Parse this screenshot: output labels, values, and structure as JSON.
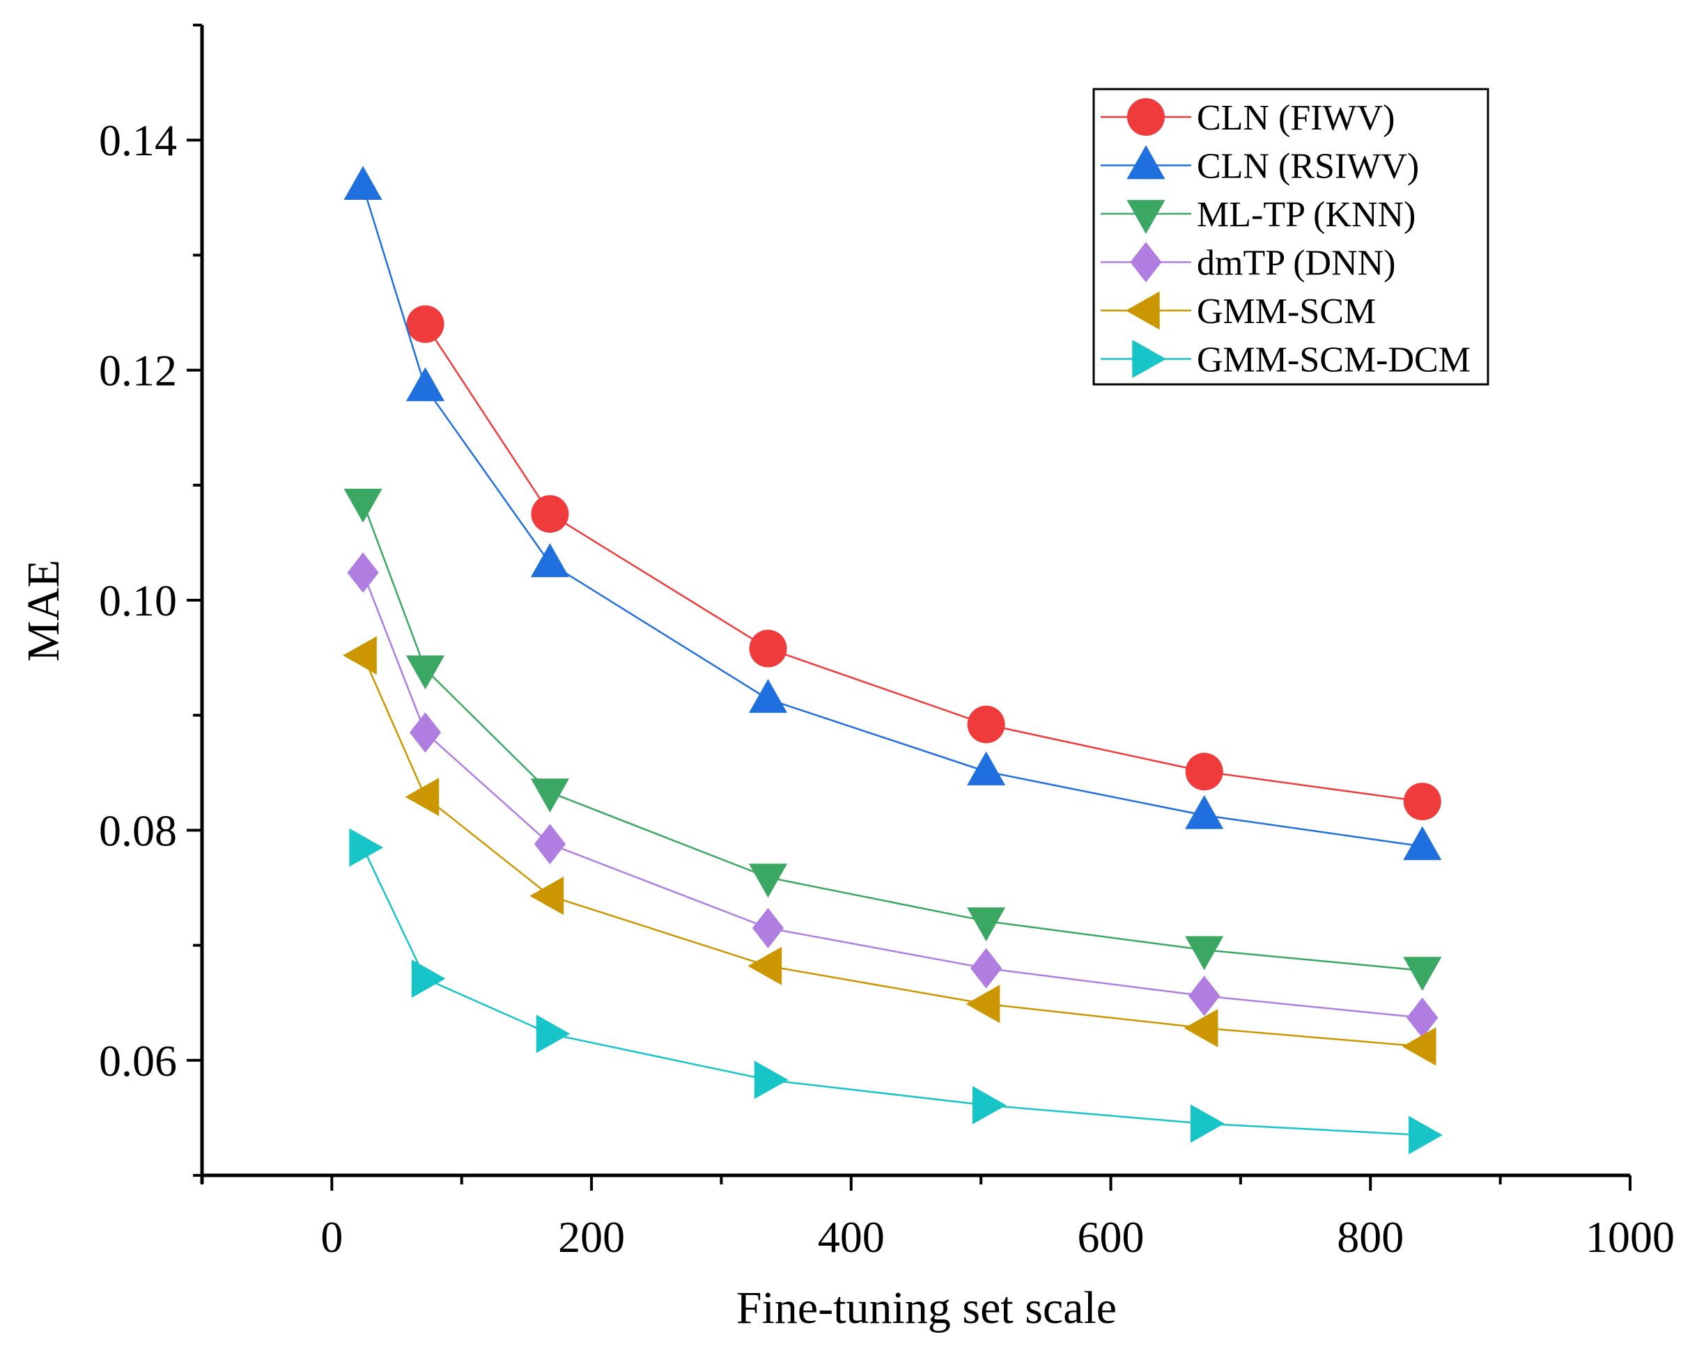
{
  "chart_data": {
    "type": "line",
    "title": "",
    "xlabel": "Fine-tuning set scale",
    "ylabel": "MAE",
    "xlim": [
      -100,
      1000
    ],
    "ylim": [
      0.05,
      0.15
    ],
    "xticks": [
      0,
      200,
      400,
      600,
      800,
      1000
    ],
    "xtick_labels": [
      "0",
      "200",
      "400",
      "600",
      "800",
      "1000"
    ],
    "yticks": [
      0.06,
      0.08,
      0.1,
      0.12,
      0.14
    ],
    "ytick_labels": [
      "0.06",
      "0.08",
      "0.10",
      "0.12",
      "0.14"
    ],
    "legend_position": "top-right",
    "series": [
      {
        "name": "CLN (FIWV)",
        "color": "#ef3b3b",
        "marker": "circle",
        "x": [
          72,
          168,
          336,
          504,
          672,
          840
        ],
        "values": [
          0.124,
          0.1075,
          0.0958,
          0.0892,
          0.0851,
          0.0825
        ]
      },
      {
        "name": "CLN (RSIWV)",
        "color": "#1f6fde",
        "marker": "triangle-up",
        "x": [
          24,
          72,
          168,
          336,
          504,
          672,
          840
        ],
        "values": [
          0.136,
          0.1185,
          0.1032,
          0.0914,
          0.0851,
          0.0813,
          0.0786
        ]
      },
      {
        "name": "ML-TP (KNN)",
        "color": "#3aa862",
        "marker": "triangle-down",
        "x": [
          24,
          72,
          168,
          336,
          504,
          672,
          840
        ],
        "values": [
          0.1085,
          0.094,
          0.0833,
          0.0759,
          0.0721,
          0.0696,
          0.0678
        ]
      },
      {
        "name": "dmTP (DNN)",
        "color": "#b07ee0",
        "marker": "diamond",
        "x": [
          24,
          72,
          168,
          336,
          504,
          672,
          840
        ],
        "values": [
          0.1024,
          0.0885,
          0.0788,
          0.0715,
          0.068,
          0.0656,
          0.0637
        ]
      },
      {
        "name": "GMM-SCM",
        "color": "#cc9600",
        "marker": "triangle-left",
        "x": [
          24,
          72,
          168,
          336,
          504,
          672,
          840
        ],
        "values": [
          0.0952,
          0.0829,
          0.0743,
          0.0682,
          0.0649,
          0.0628,
          0.0612
        ]
      },
      {
        "name": "GMM-SCM-DCM",
        "color": "#17c4c8",
        "marker": "triangle-right",
        "x": [
          24,
          72,
          168,
          336,
          504,
          672,
          840
        ],
        "values": [
          0.0785,
          0.0671,
          0.0623,
          0.0583,
          0.0561,
          0.0545,
          0.0535
        ]
      }
    ]
  }
}
